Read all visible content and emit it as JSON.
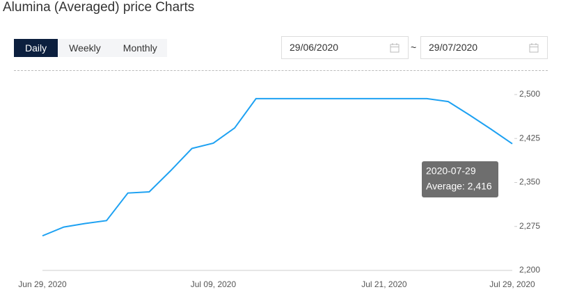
{
  "header": {
    "title": "Alumina (Averaged) price Charts"
  },
  "tabs": [
    "Daily",
    "Weekly",
    "Monthly"
  ],
  "date_range": {
    "start": "29/06/2020",
    "separator": "~",
    "end": "29/07/2020"
  },
  "chart_data": {
    "type": "line",
    "categories": [
      "Jun 29, 2020",
      null,
      null,
      null,
      null,
      null,
      null,
      null,
      "Jul 09, 2020",
      null,
      null,
      null,
      null,
      null,
      null,
      null,
      "Jul 21, 2020",
      null,
      null,
      null,
      null,
      null,
      "Jul 29, 2020"
    ],
    "series": [
      {
        "name": "Average",
        "color": "#1da1f2",
        "values": [
          2259,
          2274,
          2280,
          2285,
          2332,
          2334,
          2370,
          2408,
          2417,
          2443,
          2493,
          2493,
          2493,
          2493,
          2493,
          2493,
          2493,
          2493,
          2493,
          2488,
          2465,
          2441,
          2416
        ]
      }
    ],
    "ylim": [
      2200,
      2500
    ],
    "yticks": [
      {
        "value": 2200,
        "label": "2,200"
      },
      {
        "value": 2275,
        "label": "2,275"
      },
      {
        "value": 2350,
        "label": "2,350"
      },
      {
        "value": 2425,
        "label": "2,425"
      },
      {
        "value": 2500,
        "label": "2,500"
      }
    ],
    "tooltip": {
      "date": "2020-07-29",
      "label": "Average: 2,416"
    }
  }
}
